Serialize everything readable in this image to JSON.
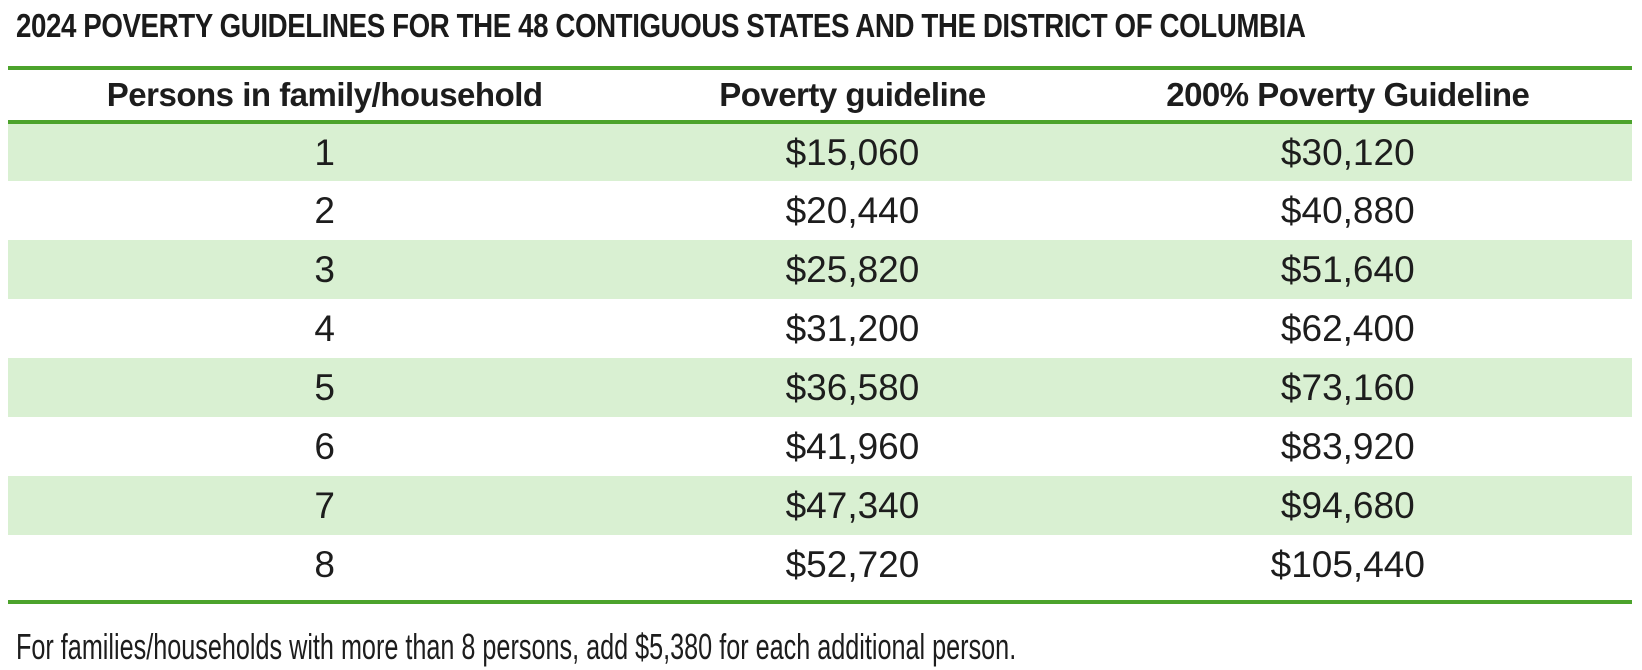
{
  "title": "2024 POVERTY GUIDELINES FOR THE 48 CONTIGUOUS STATES AND THE DISTRICT OF COLUMBIA",
  "chart_data": {
    "type": "table",
    "title": "2024 POVERTY GUIDELINES FOR THE 48 CONTIGUOUS STATES AND THE DISTRICT OF COLUMBIA",
    "columns": [
      "Persons in family/household",
      "Poverty guideline",
      "200% Poverty Guideline"
    ],
    "rows": [
      [
        "1",
        "$15,060",
        "$30,120"
      ],
      [
        "2",
        "$20,440",
        "$40,880"
      ],
      [
        "3",
        "$25,820",
        "$51,640"
      ],
      [
        "4",
        "$31,200",
        "$62,400"
      ],
      [
        "5",
        "$36,580",
        "$73,160"
      ],
      [
        "6",
        "$41,960",
        "$83,920"
      ],
      [
        "7",
        "$47,340",
        "$94,680"
      ],
      [
        "8",
        "$52,720",
        "$105,440"
      ]
    ]
  },
  "footnote": "For families/households with more than 8 persons, add $5,380 for each additional person.",
  "colors": {
    "row_stripe": "#d9f0d2",
    "rule_green": "#4ca32c",
    "text": "#1d1d1d"
  }
}
